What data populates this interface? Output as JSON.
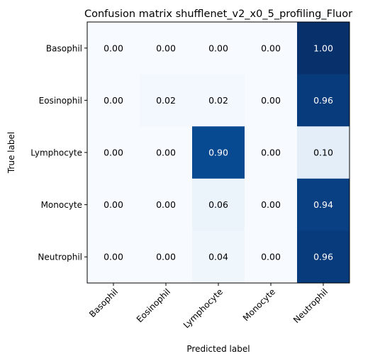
{
  "chart_data": {
    "type": "heatmap",
    "title": "Confusion matrix shufflenet_v2_x0_5_profiling_Fluor",
    "xlabel": "Predicted label",
    "ylabel": "True label",
    "x_categories": [
      "Basophil",
      "Eosinophil",
      "Lymphocyte",
      "Monocyte",
      "Neutrophil"
    ],
    "y_categories": [
      "Basophil",
      "Eosinophil",
      "Lymphocyte",
      "Monocyte",
      "Neutrophil"
    ],
    "values": [
      [
        0.0,
        0.0,
        0.0,
        0.0,
        1.0
      ],
      [
        0.0,
        0.02,
        0.02,
        0.0,
        0.96
      ],
      [
        0.0,
        0.0,
        0.9,
        0.0,
        0.1
      ],
      [
        0.0,
        0.0,
        0.06,
        0.0,
        0.94
      ],
      [
        0.0,
        0.0,
        0.04,
        0.0,
        0.96
      ]
    ],
    "value_format": "0.00",
    "colormap": "Blues",
    "vmin": 0,
    "vmax": 1,
    "grid": false,
    "legend": "none"
  }
}
